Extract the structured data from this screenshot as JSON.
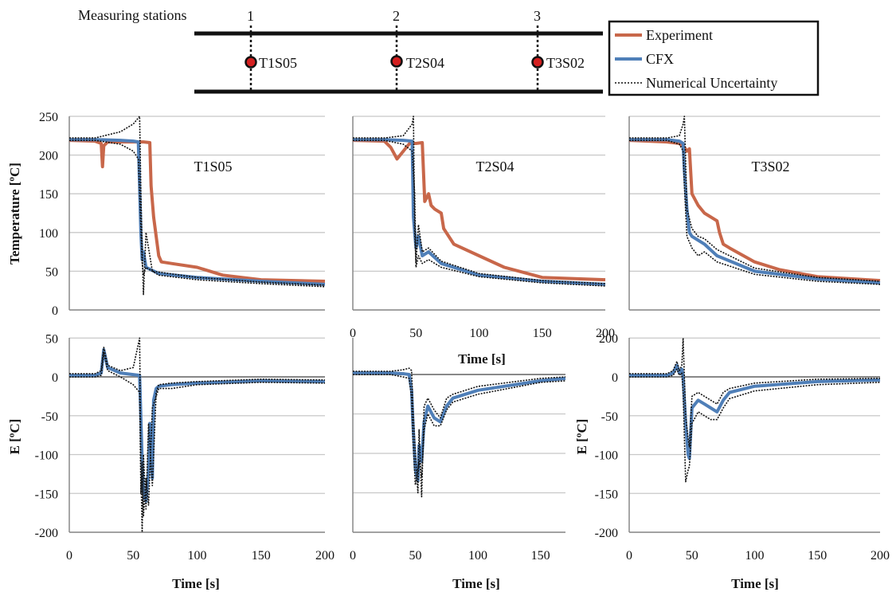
{
  "schematic": {
    "title": "Measuring stations",
    "stations": [
      {
        "number": "1",
        "sensor": "T1S05"
      },
      {
        "number": "2",
        "sensor": "T2S04"
      },
      {
        "number": "3",
        "sensor": "T3S02"
      }
    ]
  },
  "legend": {
    "entries": [
      {
        "label": "Experiment",
        "color": "#c8674a"
      },
      {
        "label": "CFX",
        "color": "#4f7fb8"
      },
      {
        "label": "Numerical Uncertainty",
        "color": "#111111"
      }
    ]
  },
  "colors": {
    "experiment": "#c8674a",
    "cfx": "#4f7fb8",
    "uncertainty": "#111111",
    "grid": "#c8c8c8",
    "axis": "#888888"
  },
  "chart_data": [
    {
      "id": "T1S05-temperature",
      "type": "line",
      "panel_label": "T1S05",
      "ylabel": "Temperature [ºC]",
      "xlabel": "",
      "xlim": [
        0,
        200
      ],
      "ylim": [
        0,
        250
      ],
      "xticks": [
        "0",
        "50",
        "100",
        "150",
        "200"
      ],
      "yticks": [
        "0",
        "50",
        "100",
        "150",
        "200",
        "250"
      ],
      "show_xticks": false,
      "show_yticks": true,
      "grid": true,
      "series": [
        {
          "name": "Experiment",
          "x": [
            0,
            20,
            25,
            26,
            27,
            30,
            45,
            58,
            63,
            64,
            66,
            68,
            70,
            72,
            80,
            100,
            120,
            150,
            200
          ],
          "y": [
            219,
            218,
            215,
            185,
            212,
            217,
            217,
            217,
            216,
            160,
            120,
            95,
            70,
            62,
            60,
            55,
            45,
            39,
            37
          ]
        },
        {
          "name": "CFX",
          "x": [
            0,
            20,
            40,
            50,
            54,
            55,
            56,
            57,
            58,
            60,
            70,
            100,
            150,
            200
          ],
          "y": [
            220,
            220,
            219,
            218,
            217,
            160,
            100,
            65,
            75,
            55,
            47,
            42,
            37,
            33
          ]
        },
        {
          "name": "Numerical Uncertainty",
          "x": [
            0,
            20,
            40,
            50,
            55,
            56,
            57,
            58,
            60,
            65,
            100,
            150,
            200
          ],
          "y": [
            222,
            222,
            230,
            240,
            250,
            150,
            80,
            20,
            100,
            50,
            42,
            36,
            32
          ]
        },
        {
          "name": "Numerical Uncertainty",
          "x": [
            0,
            20,
            40,
            50,
            54,
            55,
            57,
            58,
            60,
            70,
            100,
            150,
            200
          ],
          "y": [
            219,
            219,
            214,
            205,
            195,
            150,
            60,
            45,
            55,
            45,
            39,
            34,
            30
          ]
        }
      ]
    },
    {
      "id": "T2S04-temperature",
      "type": "line",
      "panel_label": "T2S04",
      "ylabel": "",
      "xlabel": "Time [s]",
      "xlim": [
        0,
        200
      ],
      "ylim": [
        0,
        250
      ],
      "xticks": [
        "0",
        "50",
        "100",
        "150",
        "200"
      ],
      "yticks": [],
      "show_xticks": true,
      "show_yticks": false,
      "grid": true,
      "series": [
        {
          "name": "Experiment",
          "x": [
            0,
            25,
            30,
            35,
            40,
            45,
            50,
            55,
            57,
            60,
            62,
            65,
            70,
            72,
            80,
            100,
            120,
            150,
            200
          ],
          "y": [
            219,
            218,
            210,
            195,
            205,
            215,
            215,
            216,
            140,
            150,
            135,
            130,
            125,
            105,
            85,
            70,
            55,
            42,
            39
          ]
        },
        {
          "name": "CFX",
          "x": [
            0,
            25,
            40,
            47,
            48,
            50,
            52,
            55,
            60,
            70,
            100,
            150,
            200
          ],
          "y": [
            220,
            220,
            219,
            218,
            120,
            80,
            95,
            70,
            75,
            60,
            45,
            37,
            33
          ]
        },
        {
          "name": "Numerical Uncertainty",
          "x": [
            0,
            25,
            40,
            47,
            48,
            49,
            50,
            52,
            55,
            60,
            70,
            100,
            150,
            200
          ],
          "y": [
            222,
            222,
            225,
            240,
            250,
            100,
            60,
            110,
            75,
            80,
            63,
            47,
            38,
            34
          ]
        },
        {
          "name": "Numerical Uncertainty",
          "x": [
            0,
            25,
            40,
            47,
            49,
            50,
            52,
            55,
            60,
            70,
            100,
            150,
            200
          ],
          "y": [
            219,
            219,
            214,
            205,
            150,
            55,
            70,
            60,
            65,
            55,
            43,
            35,
            31
          ]
        }
      ]
    },
    {
      "id": "T3S02-temperature",
      "type": "line",
      "panel_label": "T3S02",
      "ylabel": "",
      "xlabel": "",
      "xlim": [
        0,
        200
      ],
      "ylim": [
        0,
        250
      ],
      "xticks": [
        "0",
        "50",
        "100",
        "150",
        "200"
      ],
      "yticks": [],
      "show_xticks": false,
      "show_yticks": false,
      "grid": true,
      "series": [
        {
          "name": "Experiment",
          "x": [
            0,
            30,
            40,
            44,
            46,
            48,
            50,
            55,
            60,
            70,
            72,
            75,
            80,
            100,
            120,
            150,
            200
          ],
          "y": [
            219,
            217,
            215,
            210,
            205,
            208,
            150,
            135,
            125,
            115,
            100,
            85,
            80,
            62,
            52,
            43,
            38
          ]
        },
        {
          "name": "CFX",
          "x": [
            0,
            30,
            40,
            43,
            44,
            46,
            48,
            50,
            55,
            60,
            70,
            100,
            150,
            200
          ],
          "y": [
            220,
            220,
            218,
            215,
            180,
            130,
            100,
            95,
            90,
            85,
            70,
            50,
            40,
            35
          ]
        },
        {
          "name": "Numerical Uncertainty",
          "x": [
            0,
            30,
            40,
            43,
            44,
            46,
            50,
            55,
            60,
            70,
            100,
            150,
            200
          ],
          "y": [
            222,
            222,
            225,
            240,
            250,
            130,
            105,
            95,
            92,
            78,
            54,
            42,
            37
          ]
        },
        {
          "name": "Numerical Uncertainty",
          "x": [
            0,
            30,
            40,
            43,
            44,
            46,
            50,
            55,
            60,
            70,
            100,
            150,
            200
          ],
          "y": [
            219,
            219,
            214,
            205,
            160,
            95,
            80,
            70,
            75,
            62,
            46,
            37,
            33
          ]
        }
      ]
    },
    {
      "id": "T1S05-error",
      "type": "line",
      "panel_label": "",
      "ylabel": "E [ºC]",
      "xlabel": "Time [s]",
      "xlim": [
        0,
        200
      ],
      "ylim": [
        -200,
        50
      ],
      "xticks": [
        "0",
        "50",
        "100",
        "150",
        "200"
      ],
      "yticks": [
        "-200",
        "-150",
        "-100",
        "-50",
        "0",
        "50"
      ],
      "show_xticks": true,
      "show_yticks": true,
      "grid": true,
      "series": [
        {
          "name": "CFX",
          "x": [
            0,
            20,
            25,
            27,
            30,
            40,
            50,
            55,
            57,
            58,
            60,
            62,
            63,
            65,
            66,
            68,
            70,
            80,
            100,
            150,
            200
          ],
          "y": [
            2,
            2,
            5,
            35,
            12,
            5,
            3,
            2,
            -110,
            -150,
            -160,
            -120,
            -60,
            -130,
            -30,
            -15,
            -12,
            -10,
            -8,
            -5,
            -6
          ]
        },
        {
          "name": "Numerical Uncertainty",
          "x": [
            0,
            20,
            25,
            27,
            30,
            40,
            50,
            55,
            56,
            57,
            58,
            60,
            62,
            65,
            68,
            70,
            80,
            100,
            150,
            200
          ],
          "y": [
            4,
            4,
            8,
            38,
            15,
            8,
            12,
            50,
            -120,
            -200,
            -100,
            -170,
            -60,
            -140,
            -20,
            -10,
            -8,
            -6,
            -3,
            -4
          ]
        },
        {
          "name": "Numerical Uncertainty",
          "x": [
            0,
            20,
            25,
            27,
            30,
            40,
            50,
            55,
            56,
            57,
            58,
            60,
            62,
            65,
            68,
            70,
            80,
            100,
            150,
            200
          ],
          "y": [
            0,
            0,
            2,
            32,
            8,
            0,
            -10,
            -20,
            -150,
            -110,
            -180,
            -130,
            -165,
            -40,
            -25,
            -15,
            -15,
            -10,
            -7,
            -8
          ]
        }
      ]
    },
    {
      "id": "T2S04-error",
      "type": "line",
      "panel_label": "",
      "ylabel": "",
      "xlabel": "Time [s]",
      "xlim": [
        0,
        170
      ],
      "ylim": [
        -200,
        0
      ],
      "xticks": [
        "0",
        "50",
        "100",
        "150"
      ],
      "yticks": [],
      "show_xticks": true,
      "show_yticks": false,
      "grid": true,
      "series": [
        {
          "name": "CFX",
          "x": [
            0,
            30,
            40,
            45,
            47,
            48,
            50,
            52,
            53,
            55,
            57,
            60,
            65,
            70,
            75,
            80,
            100,
            150,
            170
          ],
          "y": [
            2,
            2,
            1,
            0,
            -20,
            -60,
            -120,
            -135,
            -90,
            -110,
            -60,
            -40,
            -55,
            -60,
            -40,
            -30,
            -20,
            -8,
            -5
          ]
        },
        {
          "name": "Numerical Uncertainty",
          "x": [
            0,
            30,
            40,
            45,
            47,
            48,
            50,
            52,
            53,
            55,
            57,
            60,
            65,
            70,
            75,
            80,
            100,
            150,
            170
          ],
          "y": [
            4,
            4,
            6,
            8,
            5,
            -40,
            -100,
            -150,
            -70,
            -155,
            -40,
            -30,
            -45,
            -55,
            -30,
            -25,
            -15,
            -5,
            -3
          ]
        },
        {
          "name": "Numerical Uncertainty",
          "x": [
            0,
            30,
            40,
            45,
            47,
            48,
            50,
            52,
            53,
            55,
            57,
            60,
            65,
            70,
            75,
            80,
            100,
            150,
            170
          ],
          "y": [
            0,
            0,
            -3,
            -5,
            -30,
            -80,
            -140,
            -120,
            -110,
            -130,
            -70,
            -50,
            -65,
            -65,
            -45,
            -35,
            -25,
            -10,
            -8
          ]
        }
      ]
    },
    {
      "id": "T3S02-error",
      "type": "line",
      "panel_label": "",
      "ylabel": "E [ºC]",
      "xlabel": "Time [s]",
      "xlim": [
        0,
        200
      ],
      "ylim": [
        -200,
        0
      ],
      "xticks": [
        "0",
        "50",
        "100",
        "150",
        "200"
      ],
      "yticks": [
        "-200",
        "-150",
        "-100",
        "-50",
        "0"
      ],
      "y_top_label": "200",
      "show_xticks": true,
      "show_yticks": true,
      "grid": true,
      "series": [
        {
          "name": "CFX",
          "x": [
            0,
            30,
            35,
            38,
            40,
            42,
            43,
            45,
            47,
            48,
            50,
            55,
            60,
            65,
            70,
            75,
            80,
            100,
            150,
            200
          ],
          "y": [
            2,
            2,
            5,
            15,
            5,
            10,
            0,
            -60,
            -100,
            -105,
            -40,
            -30,
            -35,
            -40,
            -45,
            -30,
            -20,
            -12,
            -6,
            -4
          ]
        },
        {
          "name": "Numerical Uncertainty",
          "x": [
            0,
            30,
            35,
            38,
            40,
            42,
            43,
            45,
            47,
            48,
            50,
            55,
            60,
            65,
            70,
            75,
            80,
            100,
            150,
            200
          ],
          "y": [
            4,
            4,
            8,
            20,
            8,
            15,
            50,
            -50,
            -80,
            -90,
            -25,
            -20,
            -25,
            -30,
            -35,
            -20,
            -15,
            -8,
            -3,
            -2
          ]
        },
        {
          "name": "Numerical Uncertainty",
          "x": [
            0,
            30,
            35,
            38,
            40,
            42,
            43,
            45,
            47,
            48,
            50,
            55,
            60,
            65,
            70,
            75,
            80,
            100,
            150,
            200
          ],
          "y": [
            0,
            0,
            2,
            10,
            2,
            5,
            -20,
            -135,
            -120,
            -115,
            -60,
            -45,
            -50,
            -55,
            -55,
            -40,
            -28,
            -18,
            -10,
            -7
          ]
        }
      ]
    }
  ]
}
